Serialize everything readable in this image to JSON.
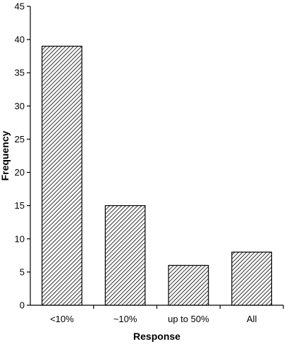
{
  "chart_data": {
    "type": "bar",
    "categories": [
      "<10%",
      "~10%",
      "up to 50%",
      "All"
    ],
    "values": [
      39,
      15,
      6,
      8
    ],
    "xlabel": "Response",
    "ylabel": "Frequency",
    "ylim": [
      0,
      45
    ],
    "yticks": [
      0,
      5,
      10,
      15,
      20,
      25,
      30,
      35,
      40,
      45
    ],
    "grid": false,
    "bar_fill": "diagonal-hatch",
    "bar_color": "#000000"
  }
}
